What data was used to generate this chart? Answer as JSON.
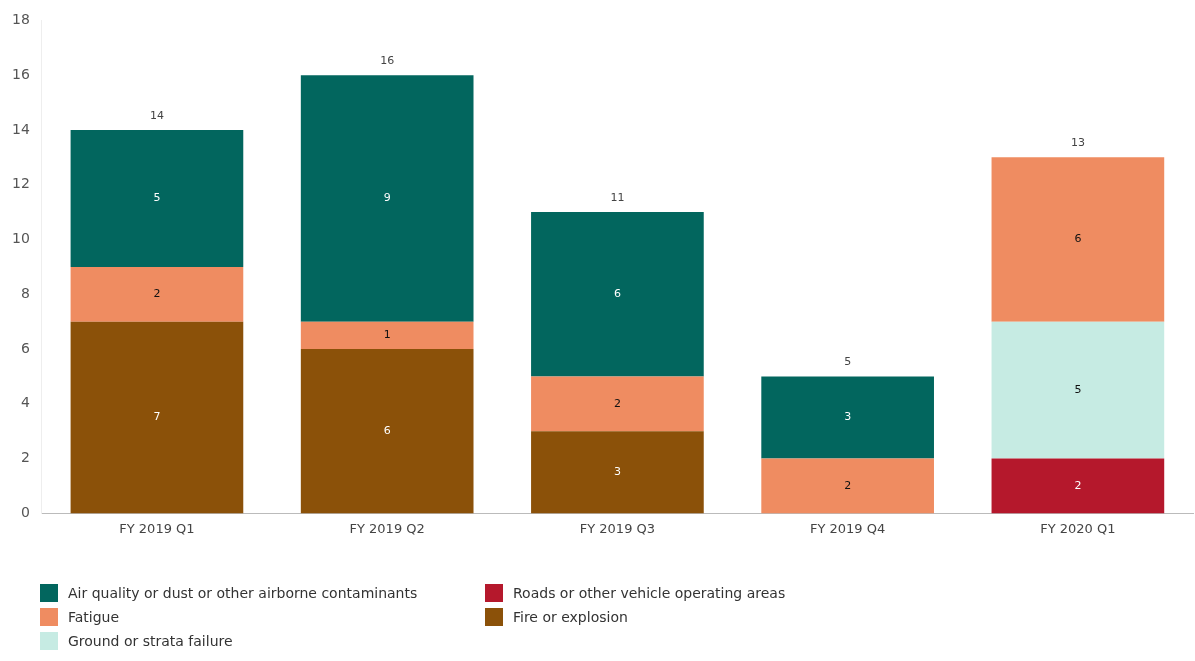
{
  "chart_data": {
    "type": "bar",
    "stacked": true,
    "categories": [
      "FY 2019 Q1",
      "FY 2019 Q2",
      "FY 2019 Q3",
      "FY 2019 Q4",
      "FY 2020 Q1"
    ],
    "series": [
      {
        "name": "Fire or explosion",
        "color": "#8b5109",
        "values": [
          7,
          6,
          3,
          null,
          null
        ]
      },
      {
        "name": "Roads or other vehicle operating areas",
        "color": "#b5182c",
        "values": [
          null,
          null,
          null,
          null,
          2
        ]
      },
      {
        "name": "Ground or strata failure",
        "color": "#c6ebe3",
        "values": [
          null,
          null,
          null,
          null,
          5
        ]
      },
      {
        "name": "Fatigue",
        "color": "#ef8c61",
        "values": [
          2,
          1,
          2,
          2,
          6
        ]
      },
      {
        "name": "Air quality or dust or other airborne contaminants",
        "color": "#02665e",
        "values": [
          5,
          9,
          6,
          3,
          null
        ]
      }
    ],
    "ylim": [
      0,
      18
    ],
    "yticks": [
      0,
      2,
      4,
      6,
      8,
      10,
      12,
      14,
      16,
      18
    ],
    "grid": false,
    "legend": "bottom",
    "data_labels": true,
    "totals": [
      "14",
      "16",
      "11",
      "5",
      "13"
    ]
  }
}
